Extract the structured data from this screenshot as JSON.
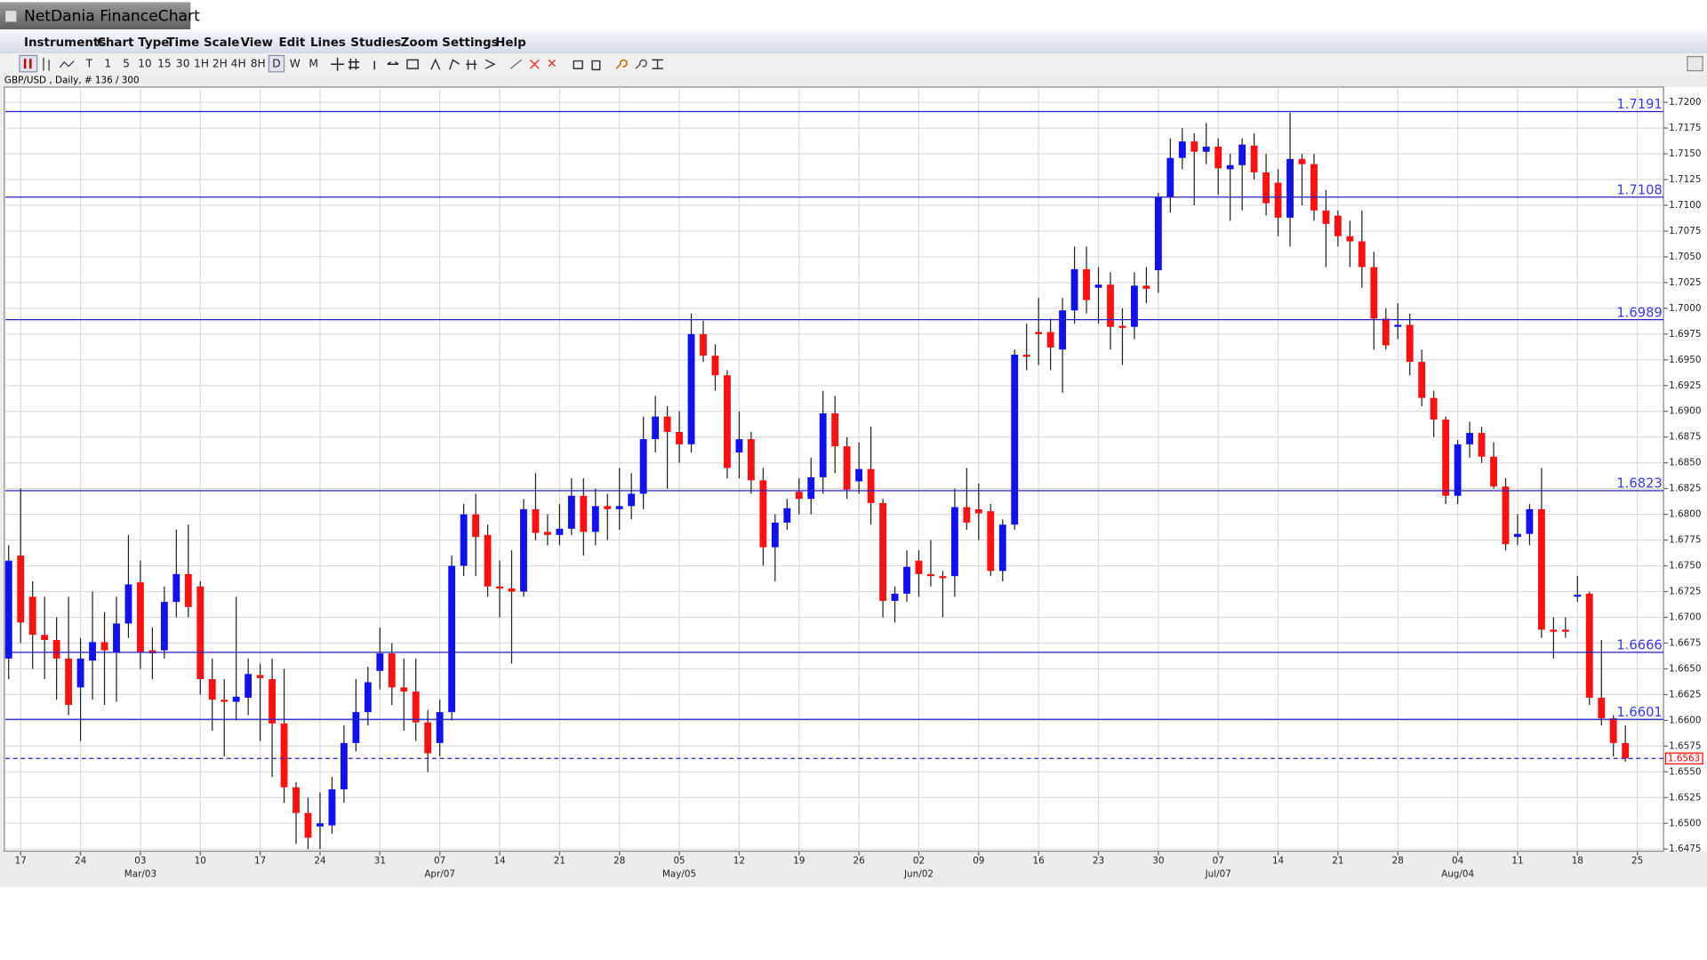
{
  "app": {
    "title": "NetDania FinanceChart",
    "menu": [
      "Instruments",
      "Chart Type",
      "Time Scale",
      "View",
      "Edit",
      "Lines",
      "Studies",
      "Zoom",
      "Settings",
      "Help"
    ],
    "toolbar": [
      "T",
      "1",
      "5",
      "10",
      "15",
      "30",
      "1H",
      "2H",
      "4H",
      "8H",
      "D",
      "W",
      "M"
    ],
    "info": "GBP/USD , Daily, # 136 / 300"
  },
  "chart_data": {
    "type": "candlestick",
    "up_color": "#1010f0",
    "down_color": "#ff1010",
    "level_color": "#2020c8",
    "last_color": "#ff0000",
    "grid": true,
    "xlim": [
      -0.27,
      138.18
    ],
    "ylim": [
      1.6473,
      1.72148
    ],
    "xticks": [
      {
        "value": 1,
        "label": "17"
      },
      {
        "value": 6,
        "label": "24"
      },
      {
        "value": 11,
        "label": "03"
      },
      {
        "value": 16,
        "label": "10"
      },
      {
        "value": 21,
        "label": "17"
      },
      {
        "value": 26,
        "label": "24"
      },
      {
        "value": 31,
        "label": "31"
      },
      {
        "value": 36,
        "label": "07"
      },
      {
        "value": 41,
        "label": "14"
      },
      {
        "value": 46,
        "label": "21"
      },
      {
        "value": 51,
        "label": "28"
      },
      {
        "value": 56,
        "label": "05"
      },
      {
        "value": 61,
        "label": "12"
      },
      {
        "value": 66,
        "label": "19"
      },
      {
        "value": 71,
        "label": "26"
      },
      {
        "value": 76,
        "label": "02"
      },
      {
        "value": 81,
        "label": "09"
      },
      {
        "value": 86,
        "label": "16"
      },
      {
        "value": 91,
        "label": "23"
      },
      {
        "value": 96,
        "label": "30"
      },
      {
        "value": 101,
        "label": "07"
      },
      {
        "value": 106,
        "label": "14"
      },
      {
        "value": 111,
        "label": "21"
      },
      {
        "value": 116,
        "label": "28"
      },
      {
        "value": 121,
        "label": "04"
      },
      {
        "value": 126,
        "label": "11"
      },
      {
        "value": 131,
        "label": "18"
      },
      {
        "value": 136,
        "label": "25"
      }
    ],
    "period_ticks": [
      {
        "value": 11,
        "label": "Mar/03"
      },
      {
        "value": 36,
        "label": "Apr/07"
      },
      {
        "value": 56,
        "label": "May/05"
      },
      {
        "value": 76,
        "label": "Jun/02"
      },
      {
        "value": 101,
        "label": "Jul/07"
      },
      {
        "value": 121,
        "label": "Aug/04"
      }
    ],
    "yticks": [
      1.6475,
      {
        "value": 1.65,
        "label": "1.6500"
      },
      1.6525,
      {
        "value": 1.655,
        "label": "1.6550"
      },
      1.6575,
      {
        "value": 1.66,
        "label": "1.6600"
      },
      1.6625,
      {
        "value": 1.665,
        "label": "1.6650"
      },
      1.6675,
      {
        "value": 1.67,
        "label": "1.6700"
      },
      1.6725,
      {
        "value": 1.675,
        "label": "1.6750"
      },
      1.6775,
      {
        "value": 1.68,
        "label": "1.6800"
      },
      1.6825,
      {
        "value": 1.685,
        "label": "1.6850"
      },
      1.6875,
      {
        "value": 1.69,
        "label": "1.6900"
      },
      1.6925,
      {
        "value": 1.695,
        "label": "1.6950"
      },
      1.6975,
      {
        "value": 1.7,
        "label": "1.7000"
      },
      1.7025,
      {
        "value": 1.705,
        "label": "1.7050"
      },
      1.7075,
      {
        "value": 1.71,
        "label": "1.7100"
      },
      1.7125,
      {
        "value": 1.715,
        "label": "1.7150"
      },
      1.7175,
      {
        "value": 1.72,
        "label": "1.7200"
      }
    ],
    "levels": [
      1.7191,
      1.7108,
      1.6989,
      1.6823,
      1.6666,
      1.6601
    ],
    "last": 1.6563,
    "open": [
      1.666,
      1.676,
      1.672,
      1.6683,
      1.6678,
      1.666,
      1.6632,
      1.6658,
      1.6676,
      1.6666,
      1.6694,
      1.6734,
      1.6668,
      1.6668,
      1.6715,
      1.6742,
      1.673,
      1.664,
      1.662,
      1.6618,
      1.6622,
      1.6644,
      1.664,
      1.6597,
      1.6535,
      1.651,
      1.6497,
      1.6498,
      1.6533,
      1.6578,
      1.6608,
      1.6648,
      1.6665,
      1.6632,
      1.6628,
      1.6598,
      1.6578,
      1.6608,
      1.675,
      1.68,
      1.678,
      1.673,
      1.6728,
      1.6725,
      1.6805,
      1.6783,
      1.678,
      1.6786,
      1.6818,
      1.6783,
      1.6808,
      1.6805,
      1.6808,
      1.682,
      1.6873,
      1.6895,
      1.688,
      1.6868,
      1.6975,
      1.6954,
      1.6935,
      1.686,
      1.6873,
      1.6833,
      1.6768,
      1.6792,
      1.6822,
      1.6815,
      1.6836,
      1.6898,
      1.6866,
      1.6832,
      1.6844,
      1.6811,
      1.6716,
      1.6723,
      1.6755,
      1.6742,
      1.674,
      1.674,
      1.6807,
      1.6805,
      1.6803,
      1.6745,
      1.679,
      1.6955,
      1.6977,
      1.6977,
      1.696,
      1.6998,
      1.7038,
      1.702,
      1.7023,
      1.6983,
      1.6982,
      1.7022,
      1.7037,
      1.7108,
      1.7146,
      1.7162,
      1.7152,
      1.7157,
      1.7135,
      1.7139,
      1.7158,
      1.7132,
      1.7122,
      1.7088,
      1.7145,
      1.714,
      1.7095,
      1.709,
      1.707,
      1.7065,
      1.704,
      1.699,
      1.6982,
      1.6984,
      1.6948,
      1.6913,
      1.6892,
      1.6818,
      1.6868,
      1.6879,
      1.6856,
      1.6827,
      1.6778,
      1.6781,
      1.6805,
      1.6688,
      1.6688,
      1.672,
      1.6723,
      1.6622,
      1.6602,
      1.6578
    ],
    "high": [
      1.677,
      1.6825,
      1.6735,
      1.672,
      1.67,
      1.672,
      1.668,
      1.6725,
      1.6705,
      1.672,
      1.678,
      1.6755,
      1.669,
      1.673,
      1.6785,
      1.679,
      1.6735,
      1.666,
      1.664,
      1.672,
      1.666,
      1.6655,
      1.666,
      1.665,
      1.654,
      1.6525,
      1.653,
      1.6545,
      1.6595,
      1.664,
      1.6652,
      1.669,
      1.6675,
      1.666,
      1.666,
      1.661,
      1.662,
      1.676,
      1.681,
      1.682,
      1.679,
      1.6755,
      1.6765,
      1.6815,
      1.684,
      1.68,
      1.681,
      1.6835,
      1.6835,
      1.6825,
      1.682,
      1.6845,
      1.684,
      1.6895,
      1.6915,
      1.6905,
      1.69,
      1.6995,
      1.6988,
      1.6965,
      1.694,
      1.69,
      1.688,
      1.6845,
      1.68,
      1.6815,
      1.6835,
      1.6855,
      1.692,
      1.6915,
      1.6875,
      1.687,
      1.6885,
      1.6815,
      1.673,
      1.6765,
      1.6765,
      1.6775,
      1.6745,
      1.6825,
      1.6845,
      1.683,
      1.681,
      1.6795,
      1.696,
      1.6985,
      1.701,
      1.699,
      1.701,
      1.706,
      1.706,
      1.704,
      1.7035,
      1.7,
      1.7035,
      1.704,
      1.7112,
      1.7165,
      1.7175,
      1.717,
      1.718,
      1.7165,
      1.715,
      1.7165,
      1.717,
      1.715,
      1.7135,
      1.719,
      1.715,
      1.715,
      1.7115,
      1.7095,
      1.7085,
      1.7095,
      1.7055,
      1.7,
      1.7005,
      1.6995,
      1.696,
      1.692,
      1.6895,
      1.6872,
      1.689,
      1.6885,
      1.687,
      1.6835,
      1.68,
      1.681,
      1.6845,
      1.67,
      1.67,
      1.674,
      1.6725,
      1.6678,
      1.6605,
      1.6595
    ],
    "low": [
      1.664,
      1.6675,
      1.665,
      1.664,
      1.662,
      1.6605,
      1.658,
      1.662,
      1.6615,
      1.6618,
      1.668,
      1.665,
      1.664,
      1.666,
      1.67,
      1.67,
      1.6625,
      1.659,
      1.6565,
      1.66,
      1.6605,
      1.658,
      1.6545,
      1.652,
      1.648,
      1.6475,
      1.6475,
      1.649,
      1.652,
      1.657,
      1.6595,
      1.663,
      1.6615,
      1.659,
      1.658,
      1.655,
      1.6565,
      1.66,
      1.674,
      1.674,
      1.672,
      1.67,
      1.6655,
      1.672,
      1.6775,
      1.677,
      1.677,
      1.678,
      1.676,
      1.677,
      1.6775,
      1.6785,
      1.6795,
      1.6805,
      1.686,
      1.6825,
      1.685,
      1.686,
      1.6948,
      1.692,
      1.6835,
      1.6835,
      1.682,
      1.675,
      1.6735,
      1.6785,
      1.68,
      1.68,
      1.682,
      1.684,
      1.6815,
      1.682,
      1.679,
      1.67,
      1.6695,
      1.6715,
      1.672,
      1.673,
      1.67,
      1.672,
      1.6785,
      1.6775,
      1.674,
      1.6735,
      1.6785,
      1.694,
      1.6945,
      1.694,
      1.6918,
      1.6985,
      1.6995,
      1.6985,
      1.696,
      1.6945,
      1.697,
      1.7005,
      1.7015,
      1.7093,
      1.7135,
      1.71,
      1.714,
      1.711,
      1.7085,
      1.7095,
      1.7125,
      1.709,
      1.707,
      1.706,
      1.71,
      1.7085,
      1.704,
      1.706,
      1.704,
      1.702,
      1.696,
      1.696,
      1.697,
      1.6935,
      1.6905,
      1.6875,
      1.681,
      1.681,
      1.6855,
      1.685,
      1.6825,
      1.6765,
      1.677,
      1.677,
      1.668,
      1.666,
      1.668,
      1.6715,
      1.6615,
      1.6595,
      1.6565,
      1.656
    ],
    "close": [
      1.6755,
      1.6695,
      1.6683,
      1.6678,
      1.666,
      1.6615,
      1.666,
      1.6676,
      1.6668,
      1.6694,
      1.6732,
      1.6666,
      1.6665,
      1.6715,
      1.6742,
      1.671,
      1.664,
      1.662,
      1.6618,
      1.6623,
      1.6645,
      1.6641,
      1.6597,
      1.6535,
      1.651,
      1.6486,
      1.65,
      1.6533,
      1.6578,
      1.6608,
      1.6637,
      1.6665,
      1.6632,
      1.6628,
      1.6598,
      1.6568,
      1.6608,
      1.675,
      1.68,
      1.6778,
      1.673,
      1.6728,
      1.6725,
      1.6805,
      1.6782,
      1.678,
      1.6786,
      1.6818,
      1.6783,
      1.6808,
      1.6805,
      1.6808,
      1.682,
      1.6873,
      1.6895,
      1.688,
      1.6868,
      1.6975,
      1.6954,
      1.6935,
      1.6845,
      1.6873,
      1.6833,
      1.6768,
      1.6792,
      1.6806,
      1.6815,
      1.6836,
      1.6898,
      1.6866,
      1.6824,
      1.6844,
      1.6811,
      1.6716,
      1.6723,
      1.6749,
      1.6742,
      1.674,
      1.6738,
      1.6807,
      1.6792,
      1.6801,
      1.6745,
      1.679,
      1.6955,
      1.6953,
      1.6975,
      1.6962,
      1.6998,
      1.7038,
      1.7008,
      1.7023,
      1.6982,
      1.6981,
      1.7022,
      1.7019,
      1.7108,
      1.7146,
      1.7162,
      1.7152,
      1.7157,
      1.7136,
      1.7139,
      1.7159,
      1.7132,
      1.7102,
      1.7088,
      1.7145,
      1.714,
      1.7095,
      1.7082,
      1.707,
      1.7065,
      1.704,
      1.699,
      1.6964,
      1.6984,
      1.6948,
      1.6913,
      1.6892,
      1.6818,
      1.6868,
      1.6879,
      1.6856,
      1.6827,
      1.6771,
      1.6781,
      1.6805,
      1.6688,
      1.6686,
      1.6686,
      1.6722,
      1.6622,
      1.6602,
      1.6578,
      1.6563
    ]
  }
}
